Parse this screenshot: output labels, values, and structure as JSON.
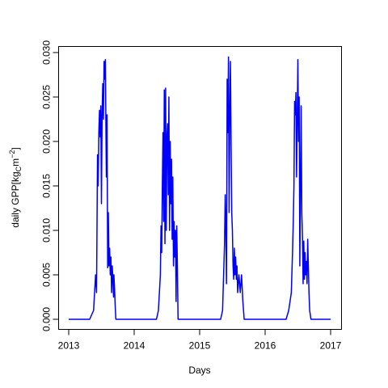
{
  "chart_data": {
    "type": "line",
    "xlabel": "Days",
    "ylabel": "daily GPP[kg",
    "ylabel_sub": "C",
    "ylabel_unit": "m",
    "ylabel_sup": "−2",
    "ylabel_close": "]",
    "xlim": [
      2013.0,
      2017.0
    ],
    "ylim": [
      0.0,
      0.03
    ],
    "x_ticks": [
      2013,
      2014,
      2015,
      2016,
      2017
    ],
    "x_tick_labels": [
      "2013",
      "2014",
      "2015",
      "2016",
      "2017"
    ],
    "y_ticks": [
      0.0,
      0.005,
      0.01,
      0.015,
      0.02,
      0.025,
      0.03
    ],
    "y_tick_labels": [
      "0.000",
      "0.005",
      "0.010",
      "0.015",
      "0.020",
      "0.025",
      "0.030"
    ],
    "grid": false,
    "legend": "none",
    "series": [
      {
        "color": "#0000ff",
        "points": [
          [
            2013.0,
            0.0
          ],
          [
            2013.32,
            0.0
          ],
          [
            2013.35,
            0.0005
          ],
          [
            2013.38,
            0.001
          ],
          [
            2013.41,
            0.005
          ],
          [
            2013.425,
            0.003
          ],
          [
            2013.44,
            0.0185
          ],
          [
            2013.45,
            0.015
          ],
          [
            2013.46,
            0.021
          ],
          [
            2013.47,
            0.0235
          ],
          [
            2013.48,
            0.0205
          ],
          [
            2013.49,
            0.024
          ],
          [
            2013.5,
            0.013
          ],
          [
            2013.51,
            0.023
          ],
          [
            2013.52,
            0.0265
          ],
          [
            2013.53,
            0.0225
          ],
          [
            2013.54,
            0.029
          ],
          [
            2013.55,
            0.027
          ],
          [
            2013.56,
            0.0292
          ],
          [
            2013.57,
            0.02
          ],
          [
            2013.575,
            0.016
          ],
          [
            2013.585,
            0.023
          ],
          [
            2013.595,
            0.0058
          ],
          [
            2013.605,
            0.012
          ],
          [
            2013.615,
            0.006
          ],
          [
            2013.625,
            0.008
          ],
          [
            2013.635,
            0.005
          ],
          [
            2013.645,
            0.007
          ],
          [
            2013.655,
            0.003
          ],
          [
            2013.665,
            0.006
          ],
          [
            2013.675,
            0.0045
          ],
          [
            2013.685,
            0.0025
          ],
          [
            2013.69,
            0.005
          ],
          [
            2013.7,
            0.0035
          ],
          [
            2013.71,
            0.0015
          ],
          [
            2013.72,
            0.0
          ],
          [
            2014.34,
            0.0
          ],
          [
            2014.37,
            0.001
          ],
          [
            2014.4,
            0.005
          ],
          [
            2014.41,
            0.0105
          ],
          [
            2014.42,
            0.0075
          ],
          [
            2014.43,
            0.015
          ],
          [
            2014.44,
            0.021
          ],
          [
            2014.45,
            0.011
          ],
          [
            2014.46,
            0.0258
          ],
          [
            2014.47,
            0.0085
          ],
          [
            2014.48,
            0.026
          ],
          [
            2014.49,
            0.01
          ],
          [
            2014.5,
            0.0205
          ],
          [
            2014.51,
            0.022
          ],
          [
            2014.52,
            0.014
          ],
          [
            2014.53,
            0.025
          ],
          [
            2014.54,
            0.01
          ],
          [
            2014.55,
            0.02
          ],
          [
            2014.56,
            0.013
          ],
          [
            2014.57,
            0.018
          ],
          [
            2014.58,
            0.009
          ],
          [
            2014.59,
            0.016
          ],
          [
            2014.6,
            0.006
          ],
          [
            2014.61,
            0.011
          ],
          [
            2014.62,
            0.007
          ],
          [
            2014.63,
            0.01
          ],
          [
            2014.64,
            0.002
          ],
          [
            2014.65,
            0.0105
          ],
          [
            2014.66,
            0.006
          ],
          [
            2014.67,
            0.0
          ],
          [
            2015.32,
            0.0
          ],
          [
            2015.35,
            0.001
          ],
          [
            2015.38,
            0.0085
          ],
          [
            2015.39,
            0.014
          ],
          [
            2015.4,
            0.01
          ],
          [
            2015.41,
            0.004
          ],
          [
            2015.42,
            0.027
          ],
          [
            2015.43,
            0.021
          ],
          [
            2015.44,
            0.0295
          ],
          [
            2015.45,
            0.012
          ],
          [
            2015.46,
            0.023
          ],
          [
            2015.47,
            0.029
          ],
          [
            2015.48,
            0.02
          ],
          [
            2015.49,
            0.012
          ],
          [
            2015.5,
            0.01
          ],
          [
            2015.51,
            0.006
          ],
          [
            2015.52,
            0.0045
          ],
          [
            2015.53,
            0.008
          ],
          [
            2015.54,
            0.005
          ],
          [
            2015.55,
            0.007
          ],
          [
            2015.56,
            0.0045
          ],
          [
            2015.57,
            0.006
          ],
          [
            2015.58,
            0.003
          ],
          [
            2015.6,
            0.005
          ],
          [
            2015.62,
            0.003
          ],
          [
            2015.64,
            0.005
          ],
          [
            2015.66,
            0.002
          ],
          [
            2015.68,
            0.0
          ],
          [
            2016.32,
            0.0
          ],
          [
            2016.36,
            0.001
          ],
          [
            2016.4,
            0.003
          ],
          [
            2016.42,
            0.008
          ],
          [
            2016.43,
            0.011
          ],
          [
            2016.44,
            0.015
          ],
          [
            2016.45,
            0.0245
          ],
          [
            2016.46,
            0.023
          ],
          [
            2016.47,
            0.0255
          ],
          [
            2016.48,
            0.016
          ],
          [
            2016.49,
            0.0225
          ],
          [
            2016.5,
            0.0292
          ],
          [
            2016.51,
            0.02
          ],
          [
            2016.52,
            0.025
          ],
          [
            2016.53,
            0.006
          ],
          [
            2016.54,
            0.015
          ],
          [
            2016.55,
            0.024
          ],
          [
            2016.56,
            0.012
          ],
          [
            2016.57,
            0.0092
          ],
          [
            2016.58,
            0.004
          ],
          [
            2016.59,
            0.0088
          ],
          [
            2016.6,
            0.0045
          ],
          [
            2016.61,
            0.0075
          ],
          [
            2016.62,
            0.005
          ],
          [
            2016.63,
            0.0065
          ],
          [
            2016.64,
            0.004
          ],
          [
            2016.65,
            0.009
          ],
          [
            2016.66,
            0.006
          ],
          [
            2016.67,
            0.003
          ],
          [
            2016.68,
            0.001
          ],
          [
            2016.7,
            0.0
          ],
          [
            2017.0,
            0.0
          ]
        ]
      }
    ]
  }
}
